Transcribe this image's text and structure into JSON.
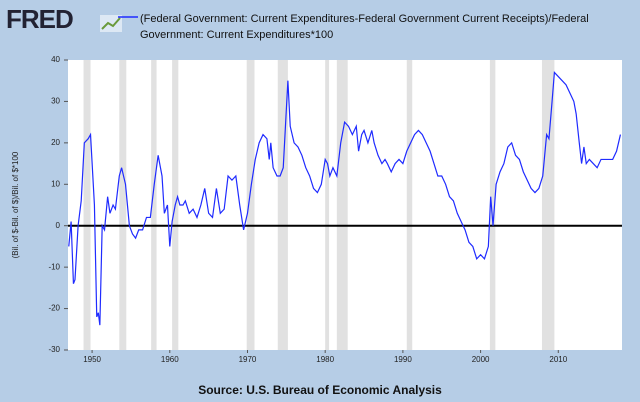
{
  "logo": "FRED",
  "chart_data": {
    "type": "line",
    "ylabel": "(Bil. of $-Bil. of $)/Bil. of $*100",
    "source": "Source: U.S. Bureau of Economic Analysis",
    "xlim": [
      1946.9,
      2018.2
    ],
    "ylim": [
      -30,
      40
    ],
    "xticks": [
      1950,
      1960,
      1970,
      1980,
      1990,
      2000,
      2010
    ],
    "yticks": [
      -30,
      -20,
      -10,
      0,
      10,
      20,
      30,
      40
    ],
    "zero_line": true,
    "grid": false,
    "recessions": [
      [
        1948.9,
        1949.8
      ],
      [
        1953.5,
        1954.4
      ],
      [
        1957.6,
        1958.3
      ],
      [
        1960.3,
        1961.1
      ],
      [
        1969.9,
        1970.9
      ],
      [
        1973.9,
        1975.2
      ],
      [
        1980.0,
        1980.5
      ],
      [
        1981.5,
        1982.9
      ],
      [
        1990.5,
        1991.2
      ],
      [
        2001.2,
        2001.9
      ],
      [
        2007.9,
        2009.5
      ]
    ],
    "recession_color": "#e1e1e1",
    "series": [
      {
        "name": "(Federal Government: Current Expenditures-Federal Government Current Receipts)/Federal Government: Current Expenditures*100",
        "color": "#1f2bff",
        "x": [
          1947.0,
          1947.3,
          1947.6,
          1947.8,
          1948.2,
          1948.6,
          1949.0,
          1949.5,
          1949.8,
          1950.3,
          1950.6,
          1950.8,
          1951.0,
          1951.3,
          1951.6,
          1952.0,
          1952.3,
          1952.7,
          1953.0,
          1953.5,
          1953.8,
          1954.3,
          1954.8,
          1955.2,
          1955.6,
          1956.0,
          1956.5,
          1957.0,
          1957.5,
          1958.0,
          1958.5,
          1959.0,
          1959.3,
          1959.7,
          1960.0,
          1960.3,
          1960.7,
          1961.0,
          1961.3,
          1961.7,
          1962.0,
          1962.5,
          1963.0,
          1963.5,
          1964.0,
          1964.5,
          1965.0,
          1965.5,
          1966.0,
          1966.5,
          1967.0,
          1967.5,
          1968.0,
          1968.5,
          1969.0,
          1969.5,
          1970.0,
          1970.5,
          1971.0,
          1971.5,
          1972.0,
          1972.5,
          1972.8,
          1973.0,
          1973.3,
          1973.8,
          1974.2,
          1974.6,
          1975.0,
          1975.2,
          1975.5,
          1976.0,
          1976.5,
          1977.0,
          1977.5,
          1978.0,
          1978.5,
          1979.0,
          1979.5,
          1980.0,
          1980.3,
          1980.6,
          1981.0,
          1981.5,
          1982.0,
          1982.5,
          1983.0,
          1983.5,
          1984.0,
          1984.3,
          1984.7,
          1985.0,
          1985.5,
          1986.0,
          1986.3,
          1986.8,
          1987.3,
          1987.7,
          1988.0,
          1988.5,
          1989.0,
          1989.5,
          1990.0,
          1990.5,
          1991.0,
          1991.5,
          1992.0,
          1992.5,
          1993.0,
          1993.5,
          1994.0,
          1994.5,
          1995.0,
          1995.5,
          1996.0,
          1996.5,
          1997.0,
          1997.5,
          1998.0,
          1998.5,
          1999.0,
          1999.5,
          2000.0,
          2000.5,
          2001.0,
          2001.3,
          2001.6,
          2002.0,
          2002.5,
          2003.0,
          2003.5,
          2004.0,
          2004.5,
          2005.0,
          2005.5,
          2006.0,
          2006.5,
          2007.0,
          2007.5,
          2008.0,
          2008.5,
          2008.8,
          2009.2,
          2009.5,
          2010.0,
          2010.5,
          2011.0,
          2011.5,
          2012.0,
          2012.3,
          2012.7,
          2013.0,
          2013.3,
          2013.6,
          2014.0,
          2014.5,
          2015.0,
          2015.5,
          2016.0,
          2016.5,
          2017.0,
          2017.5,
          2018.0
        ],
        "values": [
          -5,
          1,
          -14,
          -13,
          0,
          6,
          20,
          21,
          22,
          5,
          -22,
          -21,
          -24,
          0,
          -1,
          7,
          3,
          5,
          4,
          12,
          14,
          10,
          0,
          -2,
          -3,
          -1,
          -1,
          2,
          2,
          10,
          17,
          12,
          3,
          5,
          -5,
          1,
          5,
          7,
          5,
          5,
          6,
          3,
          4,
          2,
          5,
          9,
          3,
          2,
          9,
          3,
          4,
          12,
          11,
          12,
          5,
          -1,
          3,
          10,
          16,
          20,
          22,
          21,
          16,
          20,
          14,
          12,
          12,
          14,
          28,
          35,
          24,
          20,
          19,
          17,
          14,
          12,
          9,
          8,
          10,
          16,
          15,
          12,
          14,
          12,
          20,
          25,
          24,
          22,
          24,
          18,
          22,
          23,
          20,
          23,
          20,
          17,
          15,
          16,
          15,
          13,
          15,
          16,
          15,
          18,
          20,
          22,
          23,
          22,
          20,
          18,
          15,
          12,
          12,
          10,
          7,
          6,
          3,
          1,
          -1,
          -4,
          -5,
          -8,
          -7,
          -8,
          -5,
          7,
          0,
          10,
          13,
          15,
          19,
          20,
          17,
          16,
          13,
          11,
          9,
          8,
          9,
          12,
          22,
          21,
          30,
          37,
          36,
          35,
          34,
          32,
          30,
          27,
          20,
          15,
          19,
          15,
          16,
          15,
          14,
          16,
          16,
          16,
          16,
          18,
          22
        ]
      }
    ]
  }
}
